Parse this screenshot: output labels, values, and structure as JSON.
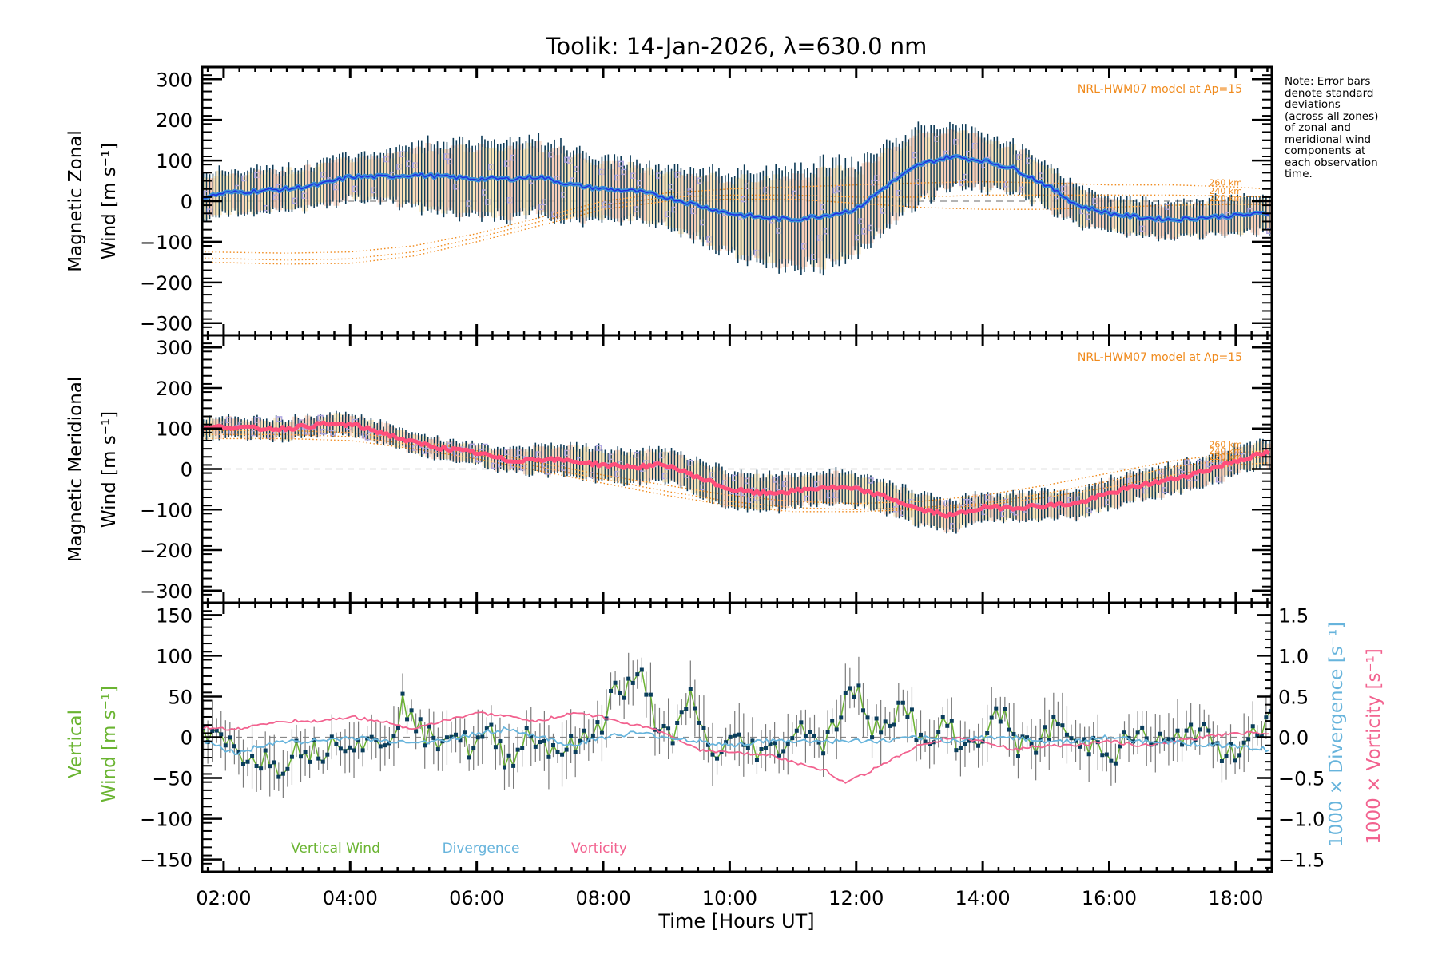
{
  "chart_data": {
    "type": "line",
    "title": "Toolik: 14-Jan-2026, λ=630.0 nm",
    "note": "Note: Error bars\ndenote standard\ndeviations\n(across all zones)\nof zonal and\nmeridional wind\ncomponents at\neach observation\ntime.",
    "xlabel": "Time [Hours UT]",
    "x_ticks": [
      "02:00",
      "04:00",
      "06:00",
      "08:00",
      "10:00",
      "12:00",
      "14:00",
      "16:00",
      "18:00"
    ],
    "xlim_hours": [
      1.66,
      18.57
    ],
    "colors": {
      "zonal": "#3a8fd8",
      "zonal_dark": "#2030e0",
      "meridional": "#ff4f7b",
      "model": "#f08a1c",
      "errorbar": "#0d3a56",
      "zone_box": "#b0a8e0",
      "vertical": "#6ab431",
      "divergence": "#67b4dc",
      "vorticity": "#f2628f",
      "vertical_points": "#0a3d5c",
      "vertical_err": "#7a7a7a"
    },
    "panels": [
      {
        "id": "zonal",
        "ylabel_line1": "Magnetic Zonal",
        "ylabel_line2": "Wind [m s⁻¹]",
        "ylim": [
          -330,
          330
        ],
        "y_ticks": [
          300,
          200,
          100,
          0,
          -100,
          -200,
          -300
        ],
        "model_label": "NRL-HWM07 model at Ap=15",
        "model_altitudes": [
          "260 km",
          "240 km",
          "220 km"
        ],
        "series_hours": [
          1.7,
          2.0,
          2.5,
          3.0,
          3.5,
          4.0,
          4.5,
          5.0,
          5.5,
          6.0,
          6.5,
          7.0,
          7.5,
          8.0,
          8.5,
          9.0,
          9.5,
          10.0,
          10.5,
          11.0,
          11.5,
          12.0,
          12.5,
          13.0,
          13.5,
          14.0,
          14.5,
          15.0,
          15.5,
          16.0,
          16.5,
          17.0,
          17.5,
          18.0,
          18.5
        ],
        "series_values": [
          10,
          20,
          25,
          30,
          40,
          60,
          60,
          65,
          60,
          55,
          55,
          60,
          40,
          30,
          25,
          10,
          -10,
          -30,
          -40,
          -45,
          -35,
          -20,
          40,
          90,
          110,
          100,
          80,
          40,
          -10,
          -30,
          -40,
          -45,
          -40,
          -35,
          -30
        ],
        "error_halfwidth": [
          60,
          55,
          55,
          55,
          55,
          55,
          60,
          80,
          90,
          95,
          95,
          95,
          90,
          80,
          75,
          75,
          85,
          100,
          110,
          120,
          130,
          110,
          100,
          90,
          80,
          70,
          60,
          55,
          50,
          45,
          45,
          45,
          45,
          45,
          45
        ],
        "model_curves": [
          {
            "label": "260 km",
            "hours": [
              1.7,
              3,
              4,
              5,
              6,
              7,
              8,
              9,
              10,
              11,
              12,
              13,
              14,
              15,
              16,
              17,
              18,
              18.5
            ],
            "values": [
              -125,
              -128,
              -125,
              -110,
              -80,
              -40,
              0,
              20,
              30,
              35,
              40,
              45,
              48,
              45,
              40,
              40,
              35,
              30
            ]
          },
          {
            "label": "240 km",
            "hours": [
              1.7,
              3,
              4,
              5,
              6,
              7,
              8,
              9,
              10,
              11,
              12,
              13,
              14,
              15,
              16,
              17,
              18,
              18.5
            ],
            "values": [
              -140,
              -145,
              -142,
              -125,
              -90,
              -50,
              -10,
              10,
              15,
              15,
              10,
              10,
              15,
              15,
              15,
              15,
              12,
              10
            ]
          },
          {
            "label": "220 km",
            "hours": [
              1.7,
              3,
              4,
              5,
              6,
              7,
              8,
              9,
              10,
              11,
              12,
              13,
              14,
              15,
              16,
              17,
              18,
              18.5
            ],
            "values": [
              -150,
              -155,
              -153,
              -135,
              -100,
              -60,
              -20,
              0,
              5,
              5,
              -5,
              -15,
              -20,
              -20,
              -15,
              -10,
              -8,
              -8
            ]
          }
        ]
      },
      {
        "id": "meridional",
        "ylabel_line1": "Magnetic Meridional",
        "ylabel_line2": "Wind [m s⁻¹]",
        "ylim": [
          -330,
          330
        ],
        "y_ticks": [
          300,
          200,
          100,
          0,
          -100,
          -200,
          -300
        ],
        "model_label": "NRL-HWM07 model at Ap=15",
        "model_altitudes": [
          "260 km",
          "240 km",
          "220 km"
        ],
        "series_hours": [
          1.7,
          2.0,
          2.5,
          3.0,
          3.5,
          4.0,
          4.5,
          5.0,
          5.5,
          6.0,
          6.5,
          7.0,
          7.5,
          8.0,
          8.5,
          9.0,
          9.5,
          10.0,
          10.5,
          11.0,
          11.5,
          12.0,
          12.5,
          13.0,
          13.5,
          14.0,
          14.5,
          15.0,
          15.5,
          16.0,
          16.5,
          17.0,
          17.5,
          18.0,
          18.5
        ],
        "series_values": [
          100,
          105,
          100,
          100,
          110,
          110,
          90,
          65,
          50,
          40,
          20,
          25,
          20,
          10,
          5,
          10,
          -20,
          -50,
          -60,
          -55,
          -45,
          -50,
          -70,
          -100,
          -115,
          -95,
          -95,
          -90,
          -85,
          -60,
          -40,
          -25,
          -5,
          20,
          40
        ],
        "error_halfwidth": [
          25,
          25,
          25,
          25,
          25,
          25,
          25,
          25,
          25,
          25,
          30,
          35,
          40,
          40,
          40,
          40,
          45,
          45,
          45,
          40,
          40,
          40,
          40,
          40,
          40,
          35,
          35,
          35,
          35,
          35,
          35,
          35,
          35,
          35,
          35
        ],
        "model_curves": [
          {
            "label": "260 km",
            "hours": [
              1.7,
              3,
              4,
              5,
              6,
              7,
              8,
              9,
              10,
              11,
              12,
              13,
              14,
              15,
              16,
              17,
              18,
              18.5
            ],
            "values": [
              95,
              95,
              90,
              70,
              45,
              15,
              -15,
              -40,
              -65,
              -80,
              -85,
              -80,
              -65,
              -40,
              -10,
              20,
              40,
              45
            ]
          },
          {
            "label": "240 km",
            "hours": [
              1.7,
              3,
              4,
              5,
              6,
              7,
              8,
              9,
              10,
              11,
              12,
              13,
              14,
              15,
              16,
              17,
              18,
              18.5
            ],
            "values": [
              85,
              85,
              80,
              60,
              35,
              5,
              -25,
              -55,
              -80,
              -95,
              -100,
              -95,
              -85,
              -60,
              -30,
              5,
              25,
              30
            ]
          },
          {
            "label": "220 km",
            "hours": [
              1.7,
              3,
              4,
              5,
              6,
              7,
              8,
              9,
              10,
              11,
              12,
              13,
              14,
              15,
              16,
              17,
              18,
              18.5
            ],
            "values": [
              75,
              75,
              70,
              50,
              25,
              -5,
              -35,
              -65,
              -90,
              -105,
              -105,
              -100,
              -90,
              -70,
              -45,
              -15,
              10,
              15
            ]
          }
        ]
      },
      {
        "id": "vertical",
        "ylabel_line1": "Vertical",
        "ylabel_line2": "Wind [m s⁻¹]",
        "ylim": [
          -165,
          165
        ],
        "y_ticks": [
          150,
          100,
          50,
          0,
          -50,
          -100,
          -150
        ],
        "y2lim": [
          -1.65,
          1.65
        ],
        "y2_ticks": [
          "1.5",
          "1.0",
          "0.5",
          "0.0",
          "−0.5",
          "−1.0",
          "−1.5"
        ],
        "y2_ticks_values": [
          1.5,
          1.0,
          0.5,
          0.0,
          -0.5,
          -1.0,
          -1.5
        ],
        "y2label_divergence": "1000 × Divergence [s⁻¹]",
        "y2label_vorticity": "1000 × Vorticity [s⁻¹]",
        "legend": [
          {
            "label": "Vertical Wind",
            "color": "#6ab431"
          },
          {
            "label": "Divergence",
            "color": "#67b4dc"
          },
          {
            "label": "Vorticity",
            "color": "#f2628f"
          }
        ],
        "vertical_hours": [
          1.7,
          2.0,
          2.3,
          2.6,
          2.9,
          3.2,
          3.5,
          3.8,
          4.1,
          4.4,
          4.7,
          4.85,
          5.0,
          5.3,
          5.6,
          5.9,
          6.2,
          6.5,
          6.8,
          7.1,
          7.4,
          7.7,
          8.0,
          8.15,
          8.3,
          8.5,
          8.65,
          8.8,
          9.1,
          9.4,
          9.7,
          10.0,
          10.3,
          10.6,
          10.9,
          11.2,
          11.5,
          11.8,
          12.0,
          12.2,
          12.5,
          12.8,
          13.1,
          13.4,
          13.7,
          14.0,
          14.3,
          14.6,
          14.9,
          15.2,
          15.5,
          15.8,
          16.1,
          16.4,
          16.7,
          17.0,
          17.3,
          17.6,
          17.9,
          18.2,
          18.5
        ],
        "vertical_values": [
          0,
          -5,
          -20,
          -25,
          -35,
          -10,
          -20,
          0,
          -5,
          -10,
          10,
          48,
          15,
          -5,
          10,
          -15,
          5,
          -30,
          5,
          -10,
          -15,
          -5,
          20,
          60,
          55,
          65,
          75,
          25,
          -10,
          55,
          -25,
          -5,
          -10,
          -20,
          -5,
          15,
          -10,
          40,
          65,
          5,
          25,
          40,
          -20,
          20,
          -15,
          5,
          30,
          -15,
          -5,
          20,
          -15,
          -5,
          -20,
          5,
          -5,
          -10,
          15,
          -5,
          -25,
          5,
          20
        ],
        "divergence_hours": [
          1.7,
          2.2,
          2.6,
          3.0,
          3.5,
          4.0,
          4.5,
          5.0,
          5.5,
          6.0,
          6.5,
          7.0,
          7.5,
          8.0,
          8.5,
          9.0,
          9.5,
          10.0,
          10.5,
          11.0,
          11.5,
          12.0,
          12.5,
          13.0,
          13.5,
          14.0,
          14.5,
          15.0,
          15.5,
          16.0,
          16.5,
          17.0,
          17.5,
          18.0,
          18.5
        ],
        "divergence_values": [
          -0.05,
          -0.2,
          -0.1,
          -0.05,
          -0.05,
          0.0,
          -0.05,
          -0.05,
          -0.05,
          0.05,
          0.1,
          0.0,
          -0.1,
          0.0,
          0.05,
          0.0,
          -0.05,
          -0.1,
          -0.05,
          -0.05,
          -0.05,
          -0.05,
          -0.05,
          0.0,
          -0.05,
          0.0,
          0.0,
          -0.05,
          -0.05,
          0.0,
          -0.05,
          -0.05,
          -0.1,
          -0.1,
          -0.15
        ],
        "vorticity_hours": [
          1.7,
          2.2,
          2.6,
          3.0,
          3.5,
          4.0,
          4.5,
          5.0,
          5.5,
          6.0,
          6.5,
          7.0,
          7.5,
          8.0,
          8.5,
          9.0,
          9.5,
          10.0,
          10.5,
          11.0,
          11.5,
          11.8,
          12.0,
          12.5,
          13.0,
          13.5,
          14.0,
          14.5,
          15.0,
          15.5,
          16.0,
          16.5,
          17.0,
          17.5,
          18.0,
          18.5
        ],
        "vorticity_values": [
          0.12,
          0.1,
          0.15,
          0.2,
          0.2,
          0.25,
          0.2,
          0.1,
          0.2,
          0.3,
          0.25,
          0.2,
          0.3,
          0.25,
          0.15,
          0.05,
          -0.15,
          -0.2,
          -0.2,
          -0.3,
          -0.4,
          -0.55,
          -0.5,
          -0.3,
          -0.1,
          0.0,
          -0.05,
          -0.15,
          -0.1,
          -0.1,
          -0.05,
          -0.1,
          -0.05,
          0.0,
          0.05,
          0.05
        ]
      }
    ]
  }
}
